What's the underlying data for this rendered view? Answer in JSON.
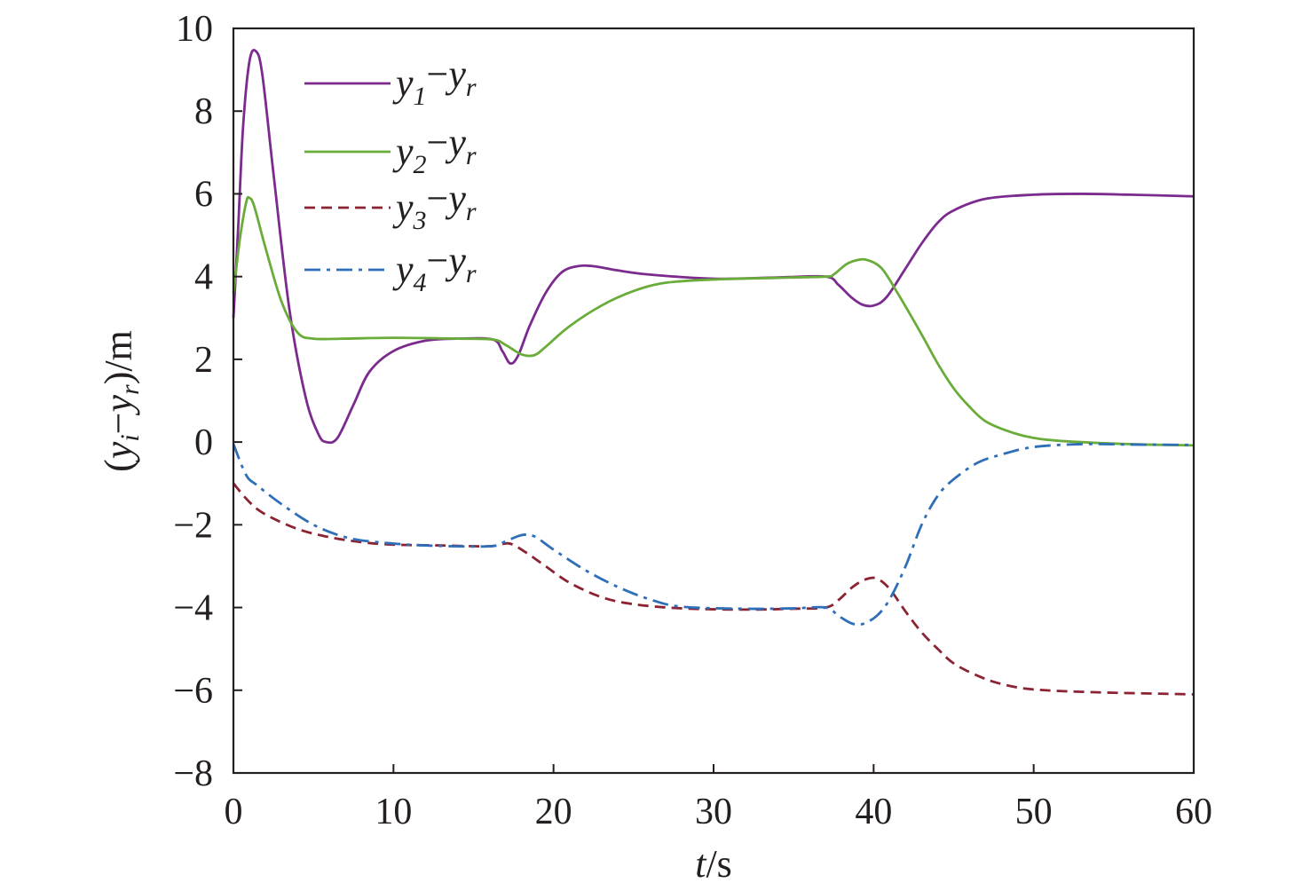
{
  "chart_data": {
    "type": "line",
    "xlabel": "t/s",
    "ylabel": "(yᵢ−yᵣ)/m",
    "xlim": [
      0,
      60
    ],
    "ylim": [
      -8,
      10
    ],
    "xticks": [
      0,
      10,
      20,
      30,
      40,
      50,
      60
    ],
    "yticks": [
      -8,
      -6,
      -4,
      -2,
      0,
      2,
      4,
      6,
      8,
      10
    ],
    "xtick_labels": [
      "0",
      "10",
      "20",
      "30",
      "40",
      "50",
      "60"
    ],
    "ytick_labels": [
      "−8",
      "−6",
      "−4",
      "−2",
      "0",
      "2",
      "4",
      "6",
      "8",
      "10"
    ],
    "grid": false,
    "legend_position": "top-left",
    "series": [
      {
        "name": "y1−yr",
        "color": "#7b2a8d",
        "dash": "solid",
        "points": [
          [
            0,
            3.0
          ],
          [
            0.3,
            5.2
          ],
          [
            0.6,
            7.6
          ],
          [
            1.0,
            9.2
          ],
          [
            1.4,
            9.45
          ],
          [
            1.8,
            8.9
          ],
          [
            2.5,
            6.5
          ],
          [
            3.5,
            3.2
          ],
          [
            4.5,
            1.1
          ],
          [
            5.3,
            0.2
          ],
          [
            5.8,
            0.0
          ],
          [
            6.5,
            0.1
          ],
          [
            7.5,
            0.9
          ],
          [
            8.5,
            1.7
          ],
          [
            10,
            2.2
          ],
          [
            12,
            2.45
          ],
          [
            14,
            2.5
          ],
          [
            16.2,
            2.48
          ],
          [
            16.8,
            2.2
          ],
          [
            17.3,
            1.9
          ],
          [
            17.8,
            2.1
          ],
          [
            18.5,
            2.8
          ],
          [
            19.5,
            3.6
          ],
          [
            20.5,
            4.1
          ],
          [
            21.5,
            4.25
          ],
          [
            22.5,
            4.25
          ],
          [
            24,
            4.15
          ],
          [
            26,
            4.05
          ],
          [
            30,
            3.95
          ],
          [
            34,
            3.98
          ],
          [
            37,
            4.0
          ],
          [
            37.8,
            3.8
          ],
          [
            38.6,
            3.5
          ],
          [
            39.3,
            3.32
          ],
          [
            40,
            3.3
          ],
          [
            40.8,
            3.5
          ],
          [
            42,
            4.2
          ],
          [
            43,
            4.8
          ],
          [
            44,
            5.3
          ],
          [
            45,
            5.6
          ],
          [
            47,
            5.88
          ],
          [
            50,
            5.98
          ],
          [
            53,
            6.0
          ],
          [
            56,
            5.98
          ],
          [
            60,
            5.94
          ]
        ]
      },
      {
        "name": "y2−yr",
        "color": "#6aac3a",
        "dash": "solid",
        "points": [
          [
            0,
            3.6
          ],
          [
            0.4,
            4.9
          ],
          [
            0.8,
            5.8
          ],
          [
            1.0,
            5.9
          ],
          [
            1.3,
            5.7
          ],
          [
            2.0,
            4.7
          ],
          [
            3.0,
            3.4
          ],
          [
            4.0,
            2.65
          ],
          [
            5.0,
            2.5
          ],
          [
            7,
            2.5
          ],
          [
            10,
            2.52
          ],
          [
            14,
            2.5
          ],
          [
            16.2,
            2.48
          ],
          [
            17,
            2.35
          ],
          [
            18,
            2.12
          ],
          [
            18.8,
            2.1
          ],
          [
            19.5,
            2.3
          ],
          [
            21,
            2.8
          ],
          [
            23,
            3.3
          ],
          [
            25,
            3.65
          ],
          [
            27,
            3.85
          ],
          [
            30,
            3.93
          ],
          [
            34,
            3.97
          ],
          [
            37,
            4.0
          ],
          [
            37.5,
            4.05
          ],
          [
            38.3,
            4.3
          ],
          [
            39,
            4.4
          ],
          [
            39.6,
            4.4
          ],
          [
            40.5,
            4.2
          ],
          [
            41.5,
            3.6
          ],
          [
            43,
            2.6
          ],
          [
            44,
            1.9
          ],
          [
            45,
            1.3
          ],
          [
            46,
            0.85
          ],
          [
            47,
            0.5
          ],
          [
            48.5,
            0.25
          ],
          [
            50,
            0.1
          ],
          [
            52,
            0.02
          ],
          [
            56,
            -0.05
          ],
          [
            60,
            -0.08
          ]
        ]
      },
      {
        "name": "y3−yr",
        "color": "#8b2332",
        "dash": "dashed",
        "points": [
          [
            0,
            -1.0
          ],
          [
            1,
            -1.45
          ],
          [
            2,
            -1.75
          ],
          [
            4,
            -2.1
          ],
          [
            6,
            -2.3
          ],
          [
            8,
            -2.42
          ],
          [
            10,
            -2.48
          ],
          [
            13,
            -2.5
          ],
          [
            16,
            -2.52
          ],
          [
            17.2,
            -2.45
          ],
          [
            18.2,
            -2.65
          ],
          [
            19.5,
            -3.0
          ],
          [
            21,
            -3.4
          ],
          [
            23,
            -3.75
          ],
          [
            25,
            -3.92
          ],
          [
            28,
            -4.02
          ],
          [
            32,
            -4.05
          ],
          [
            35,
            -4.03
          ],
          [
            37,
            -4.0
          ],
          [
            37.8,
            -3.82
          ],
          [
            38.7,
            -3.5
          ],
          [
            39.5,
            -3.32
          ],
          [
            40.2,
            -3.3
          ],
          [
            41,
            -3.55
          ],
          [
            42,
            -4.1
          ],
          [
            43,
            -4.6
          ],
          [
            44,
            -5.0
          ],
          [
            45,
            -5.35
          ],
          [
            46.5,
            -5.65
          ],
          [
            48,
            -5.85
          ],
          [
            50,
            -5.98
          ],
          [
            54,
            -6.05
          ],
          [
            60,
            -6.1
          ]
        ]
      },
      {
        "name": "y4−yr",
        "color": "#2e6fb7",
        "dash": "dashdot",
        "points": [
          [
            0,
            -0.05
          ],
          [
            0.8,
            -0.8
          ],
          [
            1.5,
            -1.05
          ],
          [
            3,
            -1.5
          ],
          [
            5,
            -2.0
          ],
          [
            7,
            -2.3
          ],
          [
            9,
            -2.42
          ],
          [
            12,
            -2.5
          ],
          [
            16,
            -2.52
          ],
          [
            17,
            -2.4
          ],
          [
            18,
            -2.25
          ],
          [
            18.8,
            -2.28
          ],
          [
            20,
            -2.6
          ],
          [
            22,
            -3.1
          ],
          [
            24,
            -3.5
          ],
          [
            26,
            -3.8
          ],
          [
            28,
            -3.98
          ],
          [
            32,
            -4.03
          ],
          [
            35,
            -4.02
          ],
          [
            37,
            -4.0
          ],
          [
            37.8,
            -4.2
          ],
          [
            38.6,
            -4.38
          ],
          [
            39.3,
            -4.4
          ],
          [
            40.2,
            -4.2
          ],
          [
            41,
            -3.8
          ],
          [
            42,
            -3.0
          ],
          [
            43,
            -2.0
          ],
          [
            44,
            -1.3
          ],
          [
            45,
            -0.9
          ],
          [
            46.5,
            -0.5
          ],
          [
            48,
            -0.3
          ],
          [
            50,
            -0.12
          ],
          [
            53,
            -0.05
          ],
          [
            56,
            -0.06
          ],
          [
            60,
            -0.07
          ]
        ]
      }
    ]
  }
}
